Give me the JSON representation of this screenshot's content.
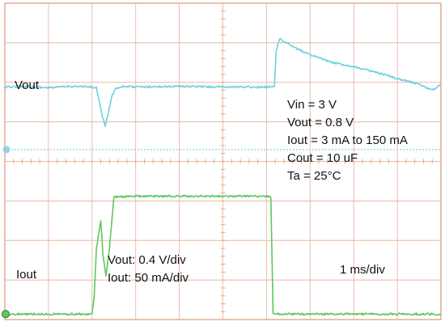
{
  "chart_data": {
    "type": "line",
    "title": "",
    "xlabel": "",
    "ylabel": "",
    "grid": true,
    "xlim": [
      0,
      10
    ],
    "ylim": [
      -4,
      4
    ],
    "x_scale_label": "1 ms/div",
    "scale_labels": [
      "Vout: 0.4 V/div",
      "Iout: 50 mA/div"
    ],
    "conditions": [
      "Vin = 3 V",
      "Vout = 0.8 V",
      "Iout = 3 mA to 150 mA",
      "Cout = 10 uF",
      "Ta = 25°C"
    ],
    "reference_marker_y": 0.3,
    "series": [
      {
        "name": "Vout",
        "color": "#6fd0e0",
        "x": [
          0,
          0.5,
          1,
          1.5,
          2,
          2.1,
          2.15,
          2.22,
          2.3,
          2.38,
          2.45,
          2.55,
          2.7,
          3,
          4,
          5,
          6,
          6.18,
          6.22,
          6.3,
          6.45,
          6.7,
          7,
          7.5,
          8,
          8.5,
          9,
          9.5,
          9.8,
          10
        ],
        "y": [
          1.88,
          1.9,
          1.86,
          1.9,
          1.88,
          1.86,
          1.6,
          1.2,
          0.9,
          1.25,
          1.65,
          1.85,
          1.9,
          1.88,
          1.9,
          1.88,
          1.88,
          1.9,
          2.8,
          3.1,
          3.0,
          2.85,
          2.7,
          2.5,
          2.4,
          2.25,
          2.1,
          1.95,
          1.8,
          1.95
        ]
      },
      {
        "name": "Iout",
        "color": "#5cc860",
        "x": [
          0,
          1,
          2,
          2.05,
          2.1,
          2.2,
          2.25,
          2.32,
          2.4,
          2.5,
          3,
          4,
          5,
          6,
          6.1,
          6.15,
          7,
          8,
          9,
          10
        ],
        "y": [
          -3.86,
          -3.86,
          -3.86,
          -3.4,
          -2.2,
          -1.5,
          -2.4,
          -2.9,
          -2.2,
          -0.9,
          -0.88,
          -0.88,
          -0.88,
          -0.88,
          -0.9,
          -3.86,
          -3.86,
          -3.86,
          -3.86,
          -3.86
        ]
      }
    ]
  }
}
